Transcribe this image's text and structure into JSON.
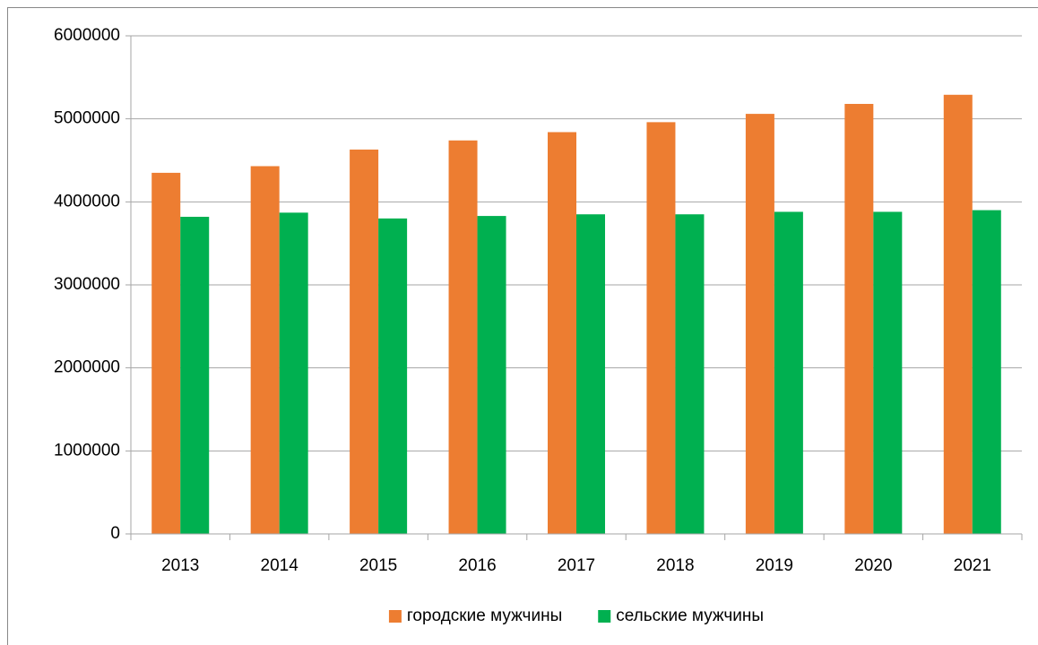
{
  "chart_data": {
    "type": "bar",
    "categories": [
      "2013",
      "2014",
      "2015",
      "2016",
      "2017",
      "2018",
      "2019",
      "2020",
      "2021"
    ],
    "series": [
      {
        "name": "городские мужчины",
        "color": "#ed7d31",
        "values": [
          4350000,
          4430000,
          4630000,
          4740000,
          4840000,
          4960000,
          5060000,
          5180000,
          5290000
        ]
      },
      {
        "name": "сельские мужчины",
        "color": "#00b050",
        "values": [
          3820000,
          3870000,
          3800000,
          3830000,
          3850000,
          3850000,
          3880000,
          3880000,
          3900000
        ]
      }
    ],
    "ylim": [
      0,
      6000000
    ],
    "yticks": [
      0,
      1000000,
      2000000,
      3000000,
      4000000,
      5000000,
      6000000
    ],
    "grid": true,
    "legend": "bottom"
  }
}
